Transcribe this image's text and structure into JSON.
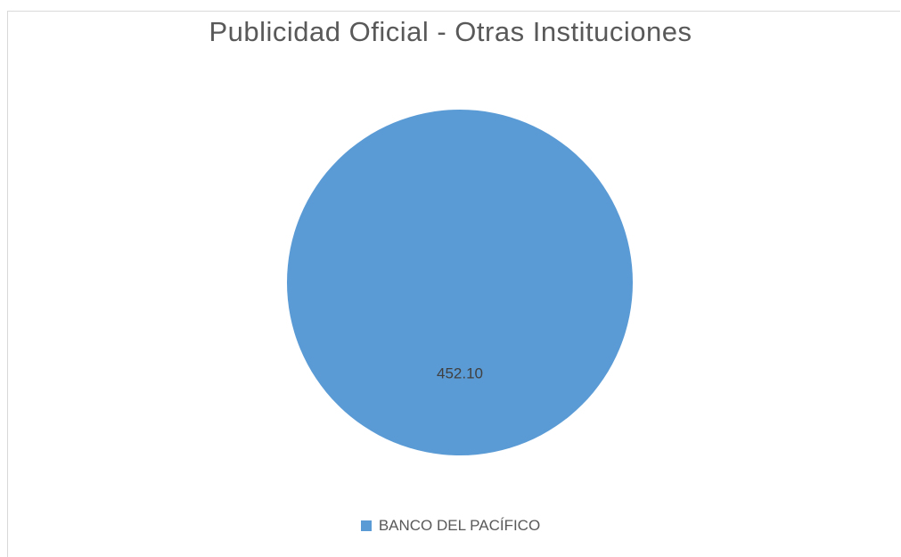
{
  "chart_data": {
    "type": "pie",
    "title": "Publicidad Oficial - Otras Instituciones",
    "categories": [
      "BANCO DEL PACÍFICO"
    ],
    "values": [
      452.1
    ],
    "data_labels": [
      "452.10"
    ],
    "colors": [
      "#5b9bd5"
    ],
    "legend_position": "bottom"
  }
}
